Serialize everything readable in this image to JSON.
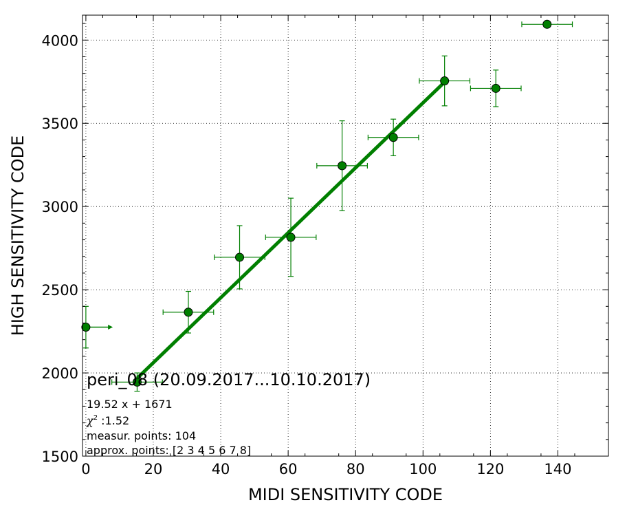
{
  "chart_data": {
    "type": "scatter",
    "xlabel": "MIDI SENSITIVITY CODE",
    "ylabel": "HIGH SENSITIVITY CODE",
    "xlim": [
      -1,
      155
    ],
    "ylim": [
      1500,
      4150
    ],
    "xticks": [
      0,
      20,
      40,
      60,
      80,
      100,
      120,
      140
    ],
    "yticks": [
      1500,
      2000,
      2500,
      3000,
      3500,
      4000
    ],
    "grid": true,
    "colors": {
      "points": "#007f00",
      "fit": "#007f00",
      "errorbars": "#007f00"
    },
    "points": [
      {
        "x": 0,
        "y": 2275,
        "xerr": 0,
        "yerr": 125
      },
      {
        "x": 15.2,
        "y": 1945,
        "xerr": 7.5,
        "yerr": 55
      },
      {
        "x": 30.4,
        "y": 2365,
        "xerr": 7.5,
        "yerr": 125
      },
      {
        "x": 45.6,
        "y": 2695,
        "xerr": 7.5,
        "yerr": 190
      },
      {
        "x": 60.8,
        "y": 2815,
        "xerr": 7.5,
        "yerr": 235
      },
      {
        "x": 76.0,
        "y": 3245,
        "xerr": 7.5,
        "yerr": 270
      },
      {
        "x": 91.2,
        "y": 3415,
        "xerr": 7.5,
        "yerr": 110
      },
      {
        "x": 106.4,
        "y": 3755,
        "xerr": 7.5,
        "yerr": 150
      },
      {
        "x": 121.6,
        "y": 3710,
        "xerr": 7.5,
        "yerr": 110
      },
      {
        "x": 136.8,
        "y": 4095,
        "xerr": 7.5,
        "yerr": 0
      }
    ],
    "arrow_from_first_point": {
      "x_to": 8,
      "y": 2275
    },
    "fit": {
      "slope": 19.52,
      "intercept": 1671,
      "x_range": [
        15.2,
        106.4
      ]
    },
    "annotations": {
      "title": "peri_08 (20.09.2017...10.10.2017)",
      "equation": "19.52 x + 1671",
      "chi_symbol": "χ",
      "chi_exp": "2",
      "chi_value": " :1.52",
      "measur": "measur. points: 104",
      "approx": "approx. points: [2 3 4 5 6 7 8]"
    }
  }
}
